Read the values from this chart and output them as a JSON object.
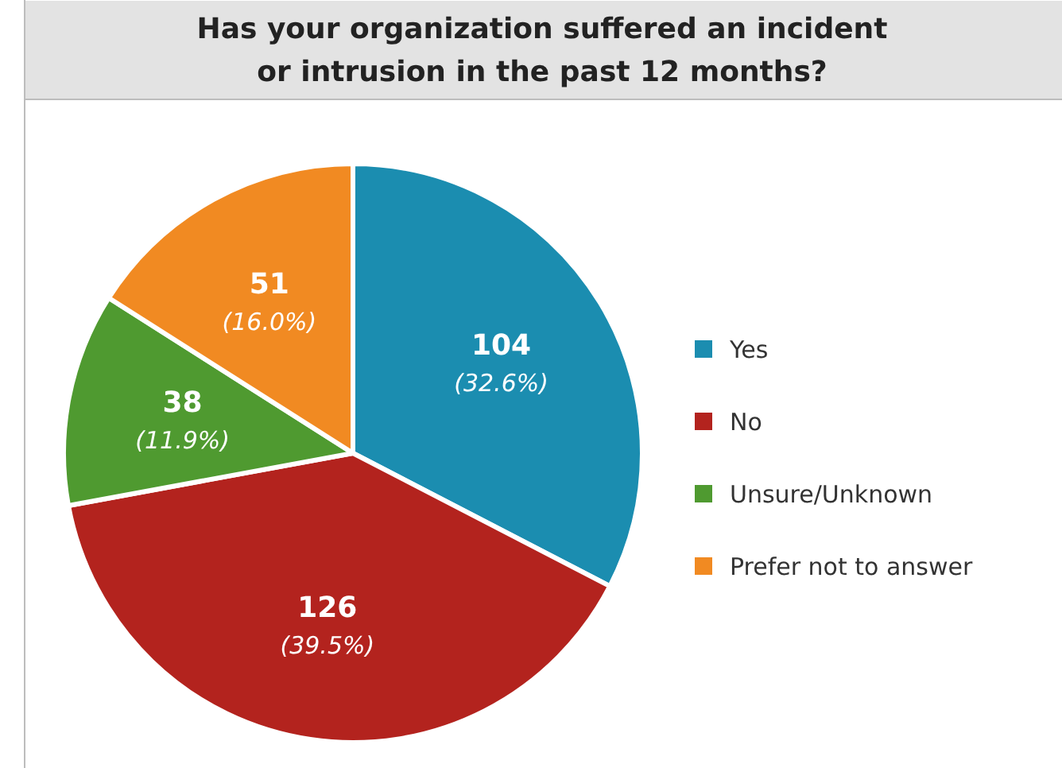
{
  "chart_data": {
    "type": "pie",
    "title": "Has your organization suffered an incident\nor intrusion in the past 12 months?",
    "categories": [
      "Yes",
      "No",
      "Unsure/Unknown",
      "Prefer not to answer"
    ],
    "values": [
      104,
      126,
      38,
      51
    ],
    "colors": [
      "#1b8db0",
      "#b3231e",
      "#4f9a30",
      "#f18a22"
    ],
    "value_labels": [
      "104\n(32.6%)",
      "126\n(39.5%)",
      "38\n(11.9%)",
      "51\n(16.0%)"
    ],
    "legend": "right"
  }
}
